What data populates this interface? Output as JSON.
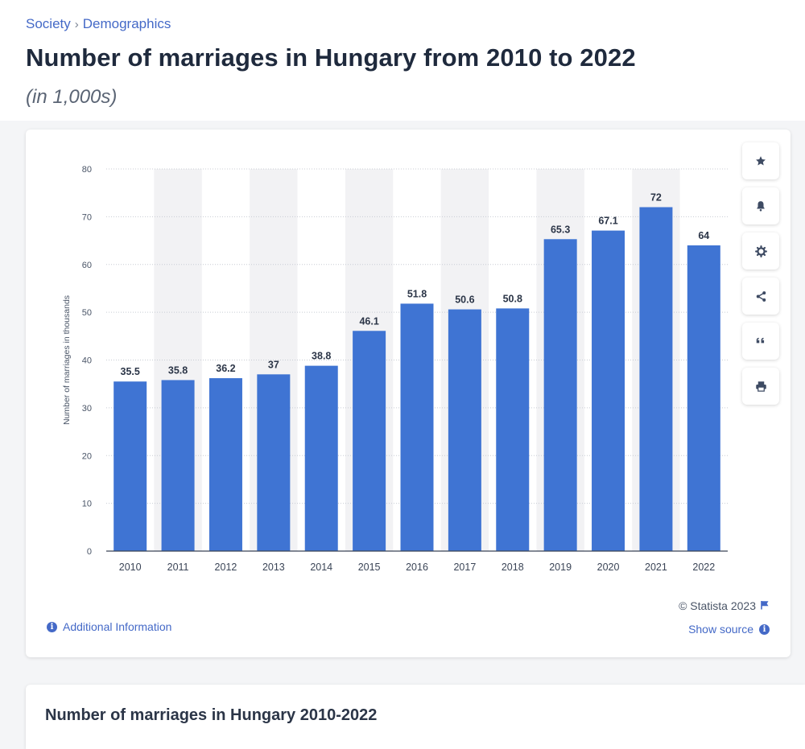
{
  "breadcrumb": {
    "items": [
      "Society",
      "Demographics"
    ],
    "separator": "›"
  },
  "page": {
    "title": "Number of marriages in Hungary from 2010 to 2022",
    "subtitle": "(in 1,000s)"
  },
  "tools": [
    {
      "name": "star-icon",
      "label": "favorite"
    },
    {
      "name": "bell-icon",
      "label": "notification"
    },
    {
      "name": "gear-icon",
      "label": "settings"
    },
    {
      "name": "share-icon",
      "label": "share"
    },
    {
      "name": "quote-icon",
      "label": "cite"
    },
    {
      "name": "print-icon",
      "label": "print"
    }
  ],
  "footer": {
    "copyright": "© Statista 2023",
    "show_source": "Show source",
    "additional_info": "Additional Information"
  },
  "section": {
    "title": "Number of marriages in Hungary 2010-2022"
  },
  "colors": {
    "bar": "#3f74d3",
    "band": "#f2f2f4",
    "accent": "#4469c7"
  },
  "chart_data": {
    "type": "bar",
    "categories": [
      "2010",
      "2011",
      "2012",
      "2013",
      "2014",
      "2015",
      "2016",
      "2017",
      "2018",
      "2019",
      "2020",
      "2021",
      "2022"
    ],
    "values": [
      35.5,
      35.8,
      36.2,
      37,
      38.8,
      46.1,
      51.8,
      50.6,
      50.8,
      65.3,
      67.1,
      72,
      64
    ],
    "data_labels": [
      "35.5",
      "35.8",
      "36.2",
      "37",
      "38.8",
      "46.1",
      "51.8",
      "50.6",
      "50.8",
      "65.3",
      "67.1",
      "72",
      "64"
    ],
    "ylabel": "Number of marriages in thousands",
    "xlabel": "",
    "ylim": [
      0,
      80
    ],
    "yticks": [
      0,
      10,
      20,
      30,
      40,
      50,
      60,
      70,
      80
    ],
    "grid": true,
    "legend": "none"
  }
}
